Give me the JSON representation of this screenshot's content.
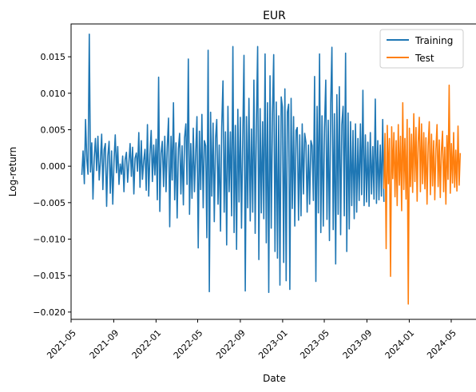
{
  "chart_data": {
    "type": "line",
    "title": "EUR",
    "xlabel": "Date",
    "ylabel": "Log-return",
    "grid": false,
    "legend_position": "top-right",
    "x_range": [
      "2021-05-01",
      "2024-05-31"
    ],
    "ylim": [
      -0.021,
      0.0195
    ],
    "x_ticks": [
      "2021-05",
      "2021-09",
      "2022-01",
      "2022-05",
      "2022-09",
      "2023-01",
      "2023-05",
      "2023-09",
      "2024-01",
      "2024-05"
    ],
    "y_ticks": [
      -0.02,
      -0.015,
      -0.01,
      -0.005,
      0.0,
      0.005,
      0.01,
      0.015
    ],
    "y_tick_labels": [
      "−0.020",
      "−0.015",
      "−0.010",
      "−0.005",
      "0.000",
      "0.005",
      "0.010",
      "0.015"
    ],
    "series": [
      {
        "name": "Training",
        "color": "#1f77b4",
        "x_start": "2021-06-01",
        "x_end": "2023-10-20",
        "values": [
          -0.0012,
          0.0021,
          -0.0024,
          0.0064,
          0.0009,
          -0.0011,
          0.0181,
          -0.0008,
          0.0032,
          -0.0045,
          0.0012,
          0.0038,
          -0.0006,
          0.0041,
          -0.0019,
          0.0007,
          0.0044,
          -0.0032,
          0.0023,
          0.0031,
          -0.0055,
          0.0014,
          0.0034,
          -0.0037,
          0.0021,
          -0.0052,
          0.0008,
          0.0043,
          -0.0009,
          0.0027,
          -0.0025,
          0.0003,
          -0.0011,
          0.0014,
          -0.0035,
          0.0009,
          0.0019,
          -0.0022,
          0.0005,
          0.0031,
          -0.0014,
          0.0026,
          -0.0038,
          0.0011,
          0.0018,
          -0.0007,
          0.0046,
          -0.0029,
          0.0035,
          -0.0018,
          0.0008,
          0.0023,
          -0.0033,
          0.0057,
          -0.0041,
          0.0016,
          0.0049,
          -0.0021,
          0.0029,
          -0.0012,
          0.0037,
          -0.0046,
          0.0122,
          -0.0062,
          0.0018,
          0.0034,
          -0.0028,
          0.0041,
          -0.0035,
          0.0026,
          0.0066,
          -0.0083,
          0.0041,
          -0.0019,
          0.0087,
          -0.0046,
          0.0032,
          -0.0071,
          0.0024,
          0.0045,
          -0.0038,
          0.0028,
          -0.0053,
          0.0039,
          0.0058,
          -0.0025,
          0.0147,
          -0.0066,
          0.0031,
          -0.0044,
          0.0052,
          -0.0035,
          0.0019,
          0.0068,
          -0.0112,
          0.0048,
          -0.0032,
          0.0071,
          -0.0057,
          0.0035,
          0.0028,
          -0.0098,
          0.0159,
          -0.0172,
          0.0074,
          -0.0041,
          0.0059,
          -0.0076,
          0.0038,
          0.0064,
          -0.0052,
          0.0029,
          -0.0089,
          0.0053,
          0.0117,
          -0.0063,
          0.0047,
          -0.0108,
          0.0082,
          -0.0035,
          0.0047,
          -0.0068,
          0.0164,
          -0.0091,
          0.0056,
          -0.0114,
          0.0078,
          -0.0049,
          0.0067,
          -0.0085,
          0.0042,
          0.0152,
          -0.0171,
          0.0068,
          -0.0057,
          0.0093,
          -0.0075,
          0.0051,
          -0.0063,
          0.0118,
          -0.0092,
          0.0057,
          0.0164,
          -0.0128,
          0.0079,
          -0.0064,
          0.0061,
          -0.0072,
          0.0154,
          -0.0105,
          0.0087,
          -0.0173,
          0.0124,
          -0.0085,
          0.0072,
          0.0153,
          -0.0117,
          0.0088,
          -0.0126,
          0.0069,
          -0.0163,
          0.0095,
          0.0081,
          -0.0132,
          0.0106,
          -0.0157,
          0.0074,
          0.0085,
          -0.0169,
          0.0093,
          -0.0058,
          0.0068,
          -0.0082,
          0.0049,
          0.0053,
          -0.0074,
          0.0043,
          -0.0068,
          0.0058,
          -0.0038,
          0.0045,
          0.0032,
          -0.0063,
          0.0029,
          -0.0052,
          0.0035,
          0.0028,
          -0.0047,
          0.0123,
          -0.0158,
          0.0082,
          -0.0064,
          0.0154,
          -0.0091,
          0.0069,
          -0.0082,
          0.0053,
          0.0118,
          -0.0073,
          0.0063,
          -0.0102,
          0.0086,
          0.0163,
          -0.0087,
          0.0072,
          -0.0134,
          0.0098,
          -0.0066,
          0.0109,
          -0.0094,
          0.0057,
          0.0082,
          -0.0068,
          0.0155,
          -0.0117,
          0.0073,
          -0.0086,
          0.0061,
          -0.0054,
          0.0049,
          -0.0072,
          0.0058,
          -0.0063,
          0.0038,
          -0.0047,
          0.0058,
          -0.0039,
          0.0104,
          -0.0054,
          0.0043,
          -0.0049,
          0.0033,
          -0.0055,
          0.0046,
          -0.0038,
          0.0027,
          -0.0045,
          0.0092,
          -0.0051,
          0.0035,
          -0.0046,
          0.0029,
          -0.0041,
          0.0064,
          -0.0049
        ]
      },
      {
        "name": "Test",
        "color": "#ff7f0e",
        "x_start": "2023-10-20",
        "x_end": "2024-05-27",
        "values": [
          -0.0031,
          0.0045,
          -0.0113,
          0.0056,
          -0.0024,
          0.0038,
          -0.0151,
          0.0054,
          -0.0017,
          0.0046,
          -0.0042,
          0.0035,
          -0.0054,
          0.0057,
          -0.0026,
          0.0041,
          -0.0061,
          0.0087,
          -0.0032,
          0.0038,
          -0.0045,
          0.0064,
          -0.0189,
          0.0052,
          -0.0028,
          0.0044,
          -0.0036,
          0.0072,
          -0.0021,
          0.0053,
          -0.0048,
          0.0033,
          0.0067,
          -0.0035,
          0.0058,
          -0.0024,
          0.0046,
          -0.0031,
          0.0039,
          -0.0052,
          0.0028,
          0.0061,
          -0.0039,
          0.0044,
          -0.0027,
          0.0035,
          -0.0046,
          0.0023,
          0.0057,
          -0.0028,
          0.0036,
          -0.0043,
          0.0021,
          0.0048,
          -0.0035,
          0.0026,
          -0.0052,
          0.0042,
          -0.0018,
          0.0111,
          -0.0037,
          0.0031,
          -0.0023,
          0.0046,
          -0.0029,
          0.0022,
          -0.0034,
          0.0055,
          -0.0026,
          0.0018
        ]
      }
    ]
  }
}
